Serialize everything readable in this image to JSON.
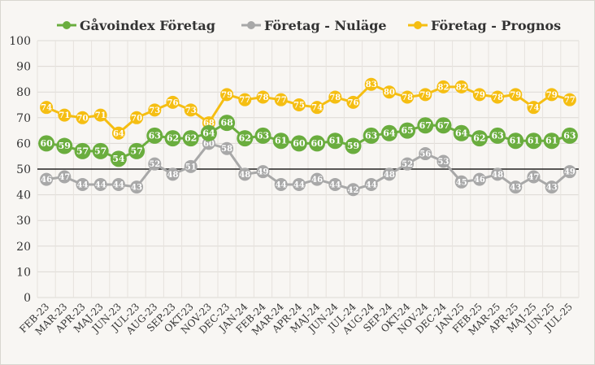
{
  "chart_data": {
    "type": "line",
    "title": "",
    "xlabel": "",
    "ylabel": "",
    "ylim": [
      0,
      100
    ],
    "yticks": [
      0,
      10,
      20,
      30,
      40,
      50,
      60,
      70,
      80,
      90,
      100
    ],
    "reference_line": 50,
    "grid": true,
    "legend_position": "top",
    "categories": [
      "FEB-23",
      "MAR-23",
      "APR-23",
      "MAJ-23",
      "JUN-23",
      "JUL-23",
      "AUG-23",
      "SEP-23",
      "OKT-23",
      "NOV-23",
      "DEC-23",
      "JAN-24",
      "FEB-24",
      "MAR-24",
      "APR-24",
      "MAJ-24",
      "JUN-24",
      "JUL-24",
      "AUG-24",
      "SEP-24",
      "OKT-24",
      "NOV-24",
      "DEC-24",
      "JAN-25",
      "FEB-25",
      "MAR-25",
      "APR-25",
      "MAJ-25",
      "JUN-25",
      "JUL-25"
    ],
    "series": [
      {
        "name": "Gåvoindex Företag",
        "color": "#6aad3e",
        "values": [
          60,
          59,
          57,
          57,
          54,
          57,
          63,
          62,
          62,
          64,
          68,
          62,
          63,
          61,
          60,
          60,
          61,
          59,
          63,
          64,
          65,
          67,
          67,
          64,
          62,
          63,
          61,
          61,
          61,
          63
        ]
      },
      {
        "name": "Företag - Nuläge",
        "color": "#a8a8a8",
        "values": [
          46,
          47,
          44,
          44,
          44,
          43,
          52,
          48,
          51,
          60,
          58,
          48,
          49,
          44,
          44,
          46,
          44,
          42,
          44,
          48,
          52,
          56,
          53,
          45,
          46,
          48,
          43,
          47,
          43,
          49
        ]
      },
      {
        "name": "Företag - Prognos",
        "color": "#f5be12",
        "values": [
          74,
          71,
          70,
          71,
          64,
          70,
          73,
          76,
          73,
          68,
          79,
          77,
          78,
          77,
          75,
          74,
          78,
          76,
          83,
          80,
          78,
          79,
          82,
          82,
          79,
          78,
          79,
          74,
          79,
          77
        ]
      }
    ]
  }
}
